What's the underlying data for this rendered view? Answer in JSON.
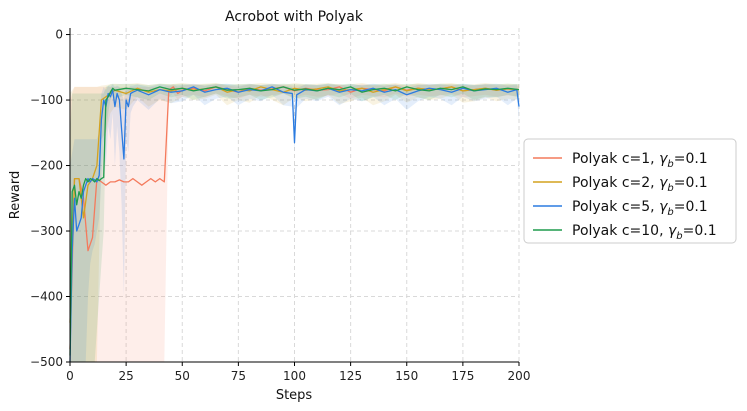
{
  "chart_data": {
    "type": "line",
    "title": "Acrobot with Polyak",
    "xlabel": "Steps",
    "ylabel": "Reward",
    "xlim": [
      0,
      200
    ],
    "ylim": [
      -500,
      10
    ],
    "x_ticks": [
      0,
      25,
      50,
      75,
      100,
      125,
      150,
      175,
      200
    ],
    "y_ticks": [
      0,
      -100,
      -200,
      -300,
      -400,
      -500
    ],
    "x_tick_labels": [
      "0",
      "25",
      "50",
      "75",
      "100",
      "125",
      "150",
      "175",
      "200"
    ],
    "y_tick_labels": [
      "0",
      "−100",
      "−200",
      "−300",
      "−400",
      "−500"
    ],
    "grid": true,
    "legend_position": "right",
    "series": [
      {
        "name": "Polyak c=1, γb=0.1",
        "legend_main": "Polyak c=1, ",
        "legend_gamma": "γ",
        "legend_sub": "b",
        "legend_tail": "=0.1",
        "color": "#f47a5c",
        "x": [
          0,
          2,
          4,
          6,
          8,
          10,
          12,
          14,
          16,
          18,
          20,
          22,
          24,
          26,
          28,
          30,
          32,
          34,
          36,
          38,
          40,
          42,
          44,
          46,
          48,
          50,
          55,
          60,
          65,
          70,
          75,
          80,
          85,
          90,
          95,
          100,
          105,
          110,
          115,
          120,
          125,
          130,
          135,
          140,
          145,
          150,
          155,
          160,
          165,
          170,
          175,
          180,
          185,
          190,
          195,
          200
        ],
        "values": [
          -480,
          -220,
          -220,
          -250,
          -330,
          -310,
          -220,
          -225,
          -230,
          -225,
          -225,
          -222,
          -225,
          -225,
          -220,
          -225,
          -230,
          -225,
          -220,
          -225,
          -220,
          -225,
          -85,
          -80,
          -90,
          -85,
          -82,
          -86,
          -80,
          -84,
          -88,
          -82,
          -85,
          -83,
          -80,
          -86,
          -82,
          -85,
          -84,
          -80,
          -88,
          -82,
          -84,
          -86,
          -80,
          -85,
          -82,
          -84,
          -83,
          -80,
          -86,
          -84,
          -82,
          -85,
          -83,
          -84
        ],
        "band_upper": [
          -100,
          -80,
          -80,
          -80,
          -80,
          -80,
          -80,
          -80,
          -80,
          -80,
          -80,
          -80,
          -80,
          -80,
          -80,
          -80,
          -80,
          -80,
          -80,
          -80,
          -80,
          -80,
          -78,
          -76,
          -80,
          -78,
          -76,
          -78,
          -76,
          -78,
          -80,
          -76,
          -78,
          -77,
          -76,
          -78,
          -77,
          -78,
          -77,
          -76,
          -80,
          -76,
          -78,
          -78,
          -76,
          -78,
          -76,
          -77,
          -77,
          -76,
          -78,
          -78,
          -76,
          -78,
          -77,
          -78
        ],
        "band_lower": [
          -500,
          -500,
          -500,
          -500,
          -500,
          -500,
          -500,
          -500,
          -500,
          -500,
          -500,
          -500,
          -500,
          -500,
          -500,
          -500,
          -500,
          -500,
          -500,
          -500,
          -500,
          -500,
          -95,
          -90,
          -100,
          -95,
          -92,
          -96,
          -90,
          -94,
          -98,
          -92,
          -95,
          -93,
          -90,
          -96,
          -92,
          -95,
          -94,
          -90,
          -98,
          -92,
          -94,
          -96,
          -90,
          -95,
          -92,
          -94,
          -93,
          -90,
          -96,
          -94,
          -92,
          -95,
          -93,
          -94
        ]
      },
      {
        "name": "Polyak c=2, γb=0.1",
        "legend_main": "Polyak c=2, ",
        "legend_gamma": "γ",
        "legend_sub": "b",
        "legend_tail": "=0.1",
        "color": "#d4a21f",
        "x": [
          0,
          2,
          4,
          6,
          8,
          10,
          12,
          14,
          16,
          18,
          20,
          25,
          30,
          35,
          40,
          45,
          50,
          55,
          60,
          65,
          70,
          75,
          80,
          85,
          90,
          95,
          100,
          105,
          110,
          115,
          120,
          125,
          130,
          135,
          140,
          145,
          150,
          155,
          160,
          165,
          170,
          175,
          180,
          185,
          190,
          195,
          200
        ],
        "values": [
          -440,
          -220,
          -220,
          -280,
          -230,
          -220,
          -200,
          -100,
          -95,
          -90,
          -85,
          -90,
          -82,
          -88,
          -84,
          -86,
          -82,
          -85,
          -83,
          -80,
          -88,
          -84,
          -86,
          -80,
          -84,
          -88,
          -82,
          -85,
          -83,
          -80,
          -86,
          -84,
          -82,
          -88,
          -84,
          -80,
          -86,
          -82,
          -84,
          -83,
          -80,
          -86,
          -84,
          -82,
          -85,
          -83,
          -84
        ],
        "band_upper": [
          -90,
          -80,
          -80,
          -80,
          -80,
          -80,
          -80,
          -78,
          -77,
          -76,
          -75,
          -76,
          -74,
          -77,
          -75,
          -76,
          -74,
          -76,
          -75,
          -74,
          -77,
          -76,
          -76,
          -74,
          -75,
          -77,
          -74,
          -76,
          -75,
          -74,
          -77,
          -76,
          -74,
          -77,
          -76,
          -74,
          -77,
          -74,
          -76,
          -75,
          -74,
          -77,
          -76,
          -74,
          -76,
          -75,
          -76
        ],
        "band_lower": [
          -500,
          -500,
          -500,
          -500,
          -500,
          -500,
          -500,
          -160,
          -150,
          -120,
          -110,
          -115,
          -95,
          -110,
          -100,
          -105,
          -95,
          -100,
          -98,
          -92,
          -108,
          -100,
          -104,
          -92,
          -100,
          -108,
          -96,
          -102,
          -98,
          -92,
          -106,
          -102,
          -96,
          -108,
          -102,
          -92,
          -104,
          -96,
          -100,
          -98,
          -92,
          -104,
          -102,
          -96,
          -102,
          -98,
          -100
        ]
      },
      {
        "name": "Polyak c=5, γb=0.1",
        "legend_main": "Polyak c=5, ",
        "legend_gamma": "γ",
        "legend_sub": "b",
        "legend_tail": "=0.1",
        "color": "#2b7be0",
        "x": [
          0,
          1,
          2,
          3,
          4,
          5,
          6,
          7,
          8,
          9,
          10,
          11,
          12,
          13,
          14,
          15,
          16,
          17,
          18,
          19,
          20,
          21,
          22,
          23,
          24,
          25,
          26,
          27,
          28,
          30,
          35,
          40,
          45,
          50,
          55,
          60,
          65,
          70,
          75,
          80,
          85,
          90,
          95,
          99,
          100,
          101,
          105,
          110,
          115,
          120,
          125,
          130,
          135,
          140,
          145,
          150,
          155,
          160,
          165,
          170,
          175,
          180,
          185,
          190,
          195,
          199,
          200
        ],
        "values": [
          -500,
          -330,
          -250,
          -300,
          -290,
          -280,
          -240,
          -230,
          -220,
          -225,
          -220,
          -222,
          -225,
          -215,
          -130,
          -100,
          -110,
          -90,
          -95,
          -85,
          -110,
          -90,
          -100,
          -145,
          -190,
          -100,
          -110,
          -90,
          -88,
          -85,
          -92,
          -84,
          -88,
          -86,
          -80,
          -88,
          -84,
          -82,
          -88,
          -84,
          -86,
          -80,
          -88,
          -90,
          -165,
          -92,
          -84,
          -86,
          -82,
          -88,
          -84,
          -86,
          -82,
          -88,
          -84,
          -92,
          -86,
          -82,
          -84,
          -88,
          -82,
          -86,
          -84,
          -82,
          -88,
          -84,
          -110
        ],
        "band_upper": [
          -200,
          -180,
          -160,
          -160,
          -160,
          -160,
          -160,
          -160,
          -160,
          -160,
          -160,
          -160,
          -160,
          -150,
          -90,
          -80,
          -85,
          -78,
          -80,
          -76,
          -80,
          -78,
          -80,
          -90,
          -100,
          -80,
          -82,
          -78,
          -78,
          -76,
          -80,
          -76,
          -78,
          -77,
          -75,
          -78,
          -76,
          -75,
          -78,
          -76,
          -77,
          -75,
          -78,
          -80,
          -110,
          -82,
          -76,
          -77,
          -75,
          -78,
          -76,
          -77,
          -75,
          -78,
          -76,
          -82,
          -77,
          -75,
          -76,
          -78,
          -75,
          -77,
          -76,
          -75,
          -78,
          -76,
          -90
        ],
        "band_lower": [
          -500,
          -500,
          -500,
          -500,
          -500,
          -500,
          -500,
          -500,
          -400,
          -350,
          -330,
          -320,
          -300,
          -280,
          -220,
          -160,
          -200,
          -140,
          -160,
          -120,
          -200,
          -140,
          -180,
          -260,
          -400,
          -160,
          -180,
          -120,
          -110,
          -100,
          -115,
          -98,
          -105,
          -102,
          -92,
          -108,
          -98,
          -95,
          -108,
          -98,
          -102,
          -92,
          -108,
          -110,
          -180,
          -112,
          -98,
          -102,
          -95,
          -108,
          -98,
          -102,
          -95,
          -108,
          -98,
          -115,
          -102,
          -95,
          -98,
          -108,
          -95,
          -102,
          -98,
          -95,
          -108,
          -98,
          -130
        ]
      },
      {
        "name": "Polyak c=10, γb=0.1",
        "legend_main": "Polyak c=10, ",
        "legend_gamma": "γ",
        "legend_sub": "b",
        "legend_tail": "=0.1",
        "color": "#1e9c4d",
        "x": [
          0,
          1,
          2,
          3,
          4,
          5,
          6,
          7,
          8,
          9,
          10,
          11,
          12,
          13,
          14,
          15,
          16,
          17,
          18,
          19,
          20,
          25,
          30,
          35,
          40,
          45,
          50,
          55,
          60,
          65,
          70,
          75,
          80,
          85,
          90,
          95,
          100,
          105,
          110,
          115,
          120,
          125,
          130,
          135,
          140,
          145,
          150,
          155,
          160,
          165,
          170,
          175,
          180,
          185,
          190,
          195,
          200
        ],
        "values": [
          -490,
          -240,
          -230,
          -260,
          -240,
          -250,
          -230,
          -220,
          -225,
          -220,
          -222,
          -225,
          -220,
          -223,
          -220,
          -218,
          -100,
          -95,
          -88,
          -82,
          -85,
          -82,
          -84,
          -86,
          -80,
          -84,
          -82,
          -86,
          -83,
          -80,
          -85,
          -84,
          -82,
          -86,
          -84,
          -80,
          -85,
          -83,
          -86,
          -82,
          -84,
          -80,
          -88,
          -84,
          -82,
          -86,
          -80,
          -84,
          -86,
          -82,
          -84,
          -80,
          -86,
          -83,
          -84,
          -82,
          -84
        ],
        "band_upper": [
          -150,
          -90,
          -90,
          -90,
          -90,
          -90,
          -90,
          -90,
          -90,
          -90,
          -90,
          -90,
          -90,
          -90,
          -90,
          -90,
          -80,
          -78,
          -76,
          -75,
          -76,
          -75,
          -76,
          -77,
          -75,
          -76,
          -75,
          -77,
          -76,
          -75,
          -76,
          -76,
          -75,
          -77,
          -76,
          -75,
          -76,
          -76,
          -77,
          -75,
          -76,
          -75,
          -78,
          -76,
          -75,
          -77,
          -75,
          -76,
          -77,
          -75,
          -76,
          -75,
          -77,
          -76,
          -76,
          -75,
          -76
        ],
        "band_lower": [
          -500,
          -500,
          -500,
          -500,
          -500,
          -500,
          -500,
          -500,
          -500,
          -500,
          -500,
          -500,
          -450,
          -400,
          -350,
          -300,
          -150,
          -120,
          -100,
          -92,
          -98,
          -92,
          -96,
          -100,
          -90,
          -96,
          -92,
          -100,
          -95,
          -90,
          -98,
          -96,
          -92,
          -100,
          -96,
          -90,
          -98,
          -95,
          -100,
          -92,
          -96,
          -90,
          -102,
          -96,
          -92,
          -100,
          -90,
          -96,
          -100,
          -92,
          -96,
          -90,
          -100,
          -95,
          -96,
          -92,
          -96
        ]
      }
    ]
  }
}
